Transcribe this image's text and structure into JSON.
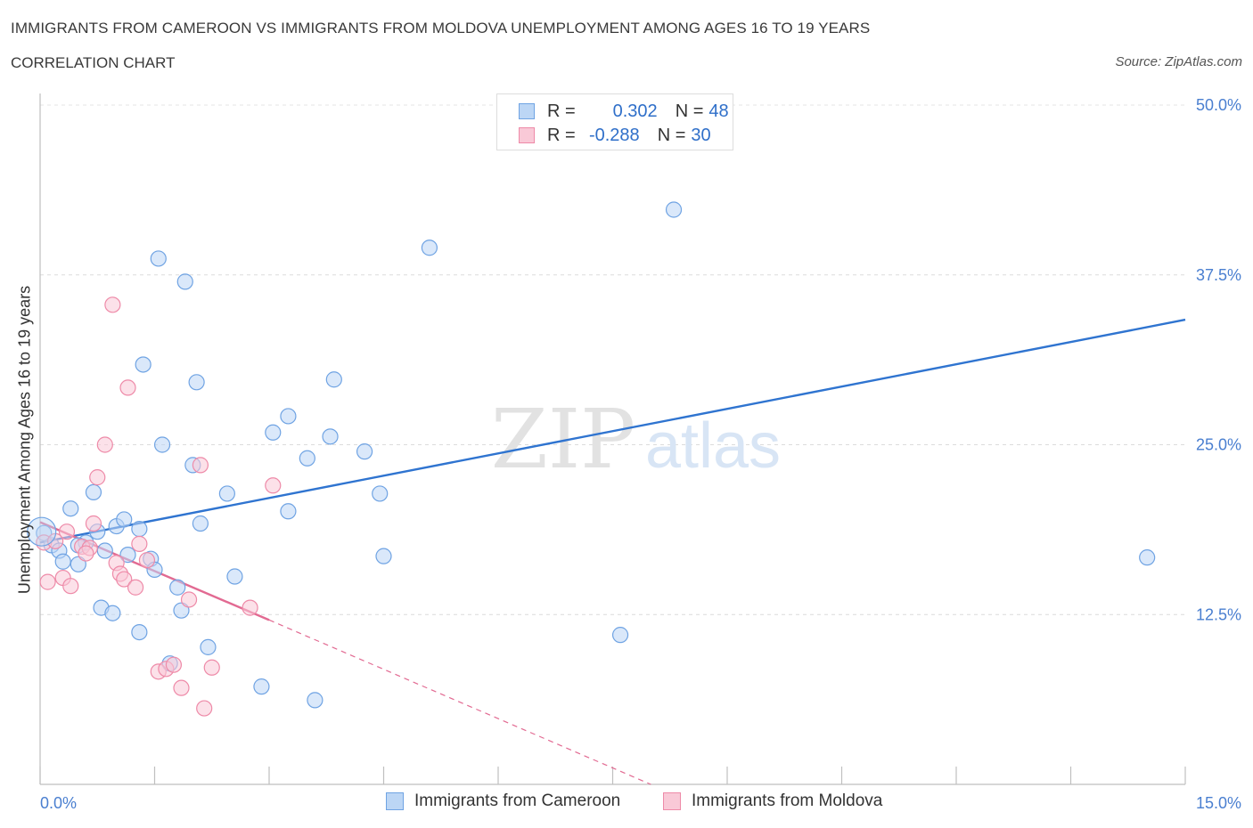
{
  "header": {
    "title": "IMMIGRANTS FROM CAMEROON VS IMMIGRANTS FROM MOLDOVA UNEMPLOYMENT AMONG AGES 16 TO 19 YEARS",
    "subtitle": "CORRELATION CHART",
    "source": "Source: ZipAtlas.com"
  },
  "watermark": {
    "zip": "ZIP",
    "atlas": "atlas"
  },
  "stats_legend": [
    {
      "r_label": "R =",
      "r_value": "0.302",
      "n_label": "N =",
      "n_value": "48",
      "color": "#a9c8f0"
    },
    {
      "r_label": "R =",
      "r_value": "-0.288",
      "n_label": "N =",
      "n_value": "30",
      "color": "#f5b5c8"
    }
  ],
  "chart_data": {
    "type": "scatter",
    "title": "IMMIGRANTS FROM CAMEROON VS IMMIGRANTS FROM MOLDOVA UNEMPLOYMENT AMONG AGES 16 TO 19 YEARS",
    "xlabel": "",
    "ylabel": "Unemployment Among Ages 16 to 19 years",
    "xlim": [
      0,
      15
    ],
    "ylim": [
      0,
      50
    ],
    "x_tick_labels": [
      "0.0%",
      "15.0%"
    ],
    "y_tick_labels": [
      "12.5%",
      "25.0%",
      "37.5%",
      "50.0%"
    ],
    "y_ticks": [
      12.5,
      25.0,
      37.5,
      50.0
    ],
    "grid": true,
    "legend_position": "bottom-center",
    "series": [
      {
        "name": "Immigrants from Cameroon",
        "color": "#6fa3e3",
        "fill": "#bcd6f5",
        "points": [
          [
            0.05,
            18.5
          ],
          [
            0.15,
            17.6
          ],
          [
            0.25,
            17.2
          ],
          [
            0.3,
            16.4
          ],
          [
            0.4,
            20.3
          ],
          [
            0.5,
            16.2
          ],
          [
            0.6,
            17.8
          ],
          [
            0.7,
            21.5
          ],
          [
            0.8,
            13.0
          ],
          [
            0.85,
            17.2
          ],
          [
            0.95,
            12.6
          ],
          [
            1.0,
            19.0
          ],
          [
            1.1,
            19.5
          ],
          [
            1.15,
            16.9
          ],
          [
            1.3,
            11.2
          ],
          [
            1.35,
            30.9
          ],
          [
            1.45,
            16.6
          ],
          [
            1.5,
            15.8
          ],
          [
            1.55,
            38.7
          ],
          [
            1.6,
            25.0
          ],
          [
            1.8,
            14.5
          ],
          [
            1.85,
            12.8
          ],
          [
            1.9,
            37.0
          ],
          [
            2.0,
            23.5
          ],
          [
            2.05,
            29.6
          ],
          [
            2.2,
            10.1
          ],
          [
            2.45,
            21.4
          ],
          [
            2.55,
            15.3
          ],
          [
            2.9,
            7.2
          ],
          [
            3.05,
            25.9
          ],
          [
            3.25,
            27.1
          ],
          [
            3.25,
            20.1
          ],
          [
            3.5,
            24.0
          ],
          [
            3.6,
            6.2
          ],
          [
            3.8,
            25.6
          ],
          [
            3.85,
            29.8
          ],
          [
            4.25,
            24.5
          ],
          [
            4.45,
            21.4
          ],
          [
            4.5,
            16.8
          ],
          [
            5.1,
            39.5
          ],
          [
            8.3,
            42.3
          ],
          [
            7.6,
            11.0
          ],
          [
            14.5,
            16.7
          ],
          [
            1.7,
            8.9
          ],
          [
            1.3,
            18.8
          ],
          [
            0.5,
            17.6
          ],
          [
            0.75,
            18.6
          ],
          [
            2.1,
            19.2
          ]
        ]
      },
      {
        "name": "Immigrants from Moldova",
        "color": "#ee8aa8",
        "fill": "#f9c9d7",
        "points": [
          [
            0.05,
            17.8
          ],
          [
            0.1,
            14.9
          ],
          [
            0.2,
            17.9
          ],
          [
            0.3,
            15.2
          ],
          [
            0.35,
            18.6
          ],
          [
            0.4,
            14.6
          ],
          [
            0.55,
            17.5
          ],
          [
            0.65,
            17.4
          ],
          [
            0.7,
            19.2
          ],
          [
            0.75,
            22.6
          ],
          [
            0.85,
            25.0
          ],
          [
            0.95,
            35.3
          ],
          [
            1.0,
            16.3
          ],
          [
            1.05,
            15.5
          ],
          [
            1.1,
            15.1
          ],
          [
            1.15,
            29.2
          ],
          [
            1.25,
            14.5
          ],
          [
            1.3,
            17.7
          ],
          [
            1.4,
            16.5
          ],
          [
            1.55,
            8.3
          ],
          [
            1.65,
            8.5
          ],
          [
            1.75,
            8.8
          ],
          [
            1.85,
            7.1
          ],
          [
            1.95,
            13.6
          ],
          [
            2.1,
            23.5
          ],
          [
            2.15,
            5.6
          ],
          [
            2.25,
            8.6
          ],
          [
            2.75,
            13.0
          ],
          [
            3.05,
            22.0
          ],
          [
            0.6,
            17.0
          ]
        ]
      }
    ],
    "trendlines": [
      {
        "series": "Immigrants from Cameroon",
        "x": [
          0.0,
          15.0
        ],
        "y": [
          17.8,
          34.2
        ],
        "style": "solid"
      },
      {
        "series": "Immigrants from Moldova",
        "x": [
          0.0,
          3.0
        ],
        "y": [
          19.3,
          12.1
        ],
        "style": "solid"
      },
      {
        "series": "Immigrants from Moldova",
        "x": [
          3.0,
          8.0
        ],
        "y": [
          12.1,
          0.0
        ],
        "style": "dashed"
      }
    ]
  },
  "bottom_legend": [
    {
      "label": "Immigrants from Cameroon",
      "color": "#a9c8f0",
      "border": "#6fa3e3"
    },
    {
      "label": "Immigrants from Moldova",
      "color": "#f5c2d0",
      "border": "#ee8aa8"
    }
  ]
}
